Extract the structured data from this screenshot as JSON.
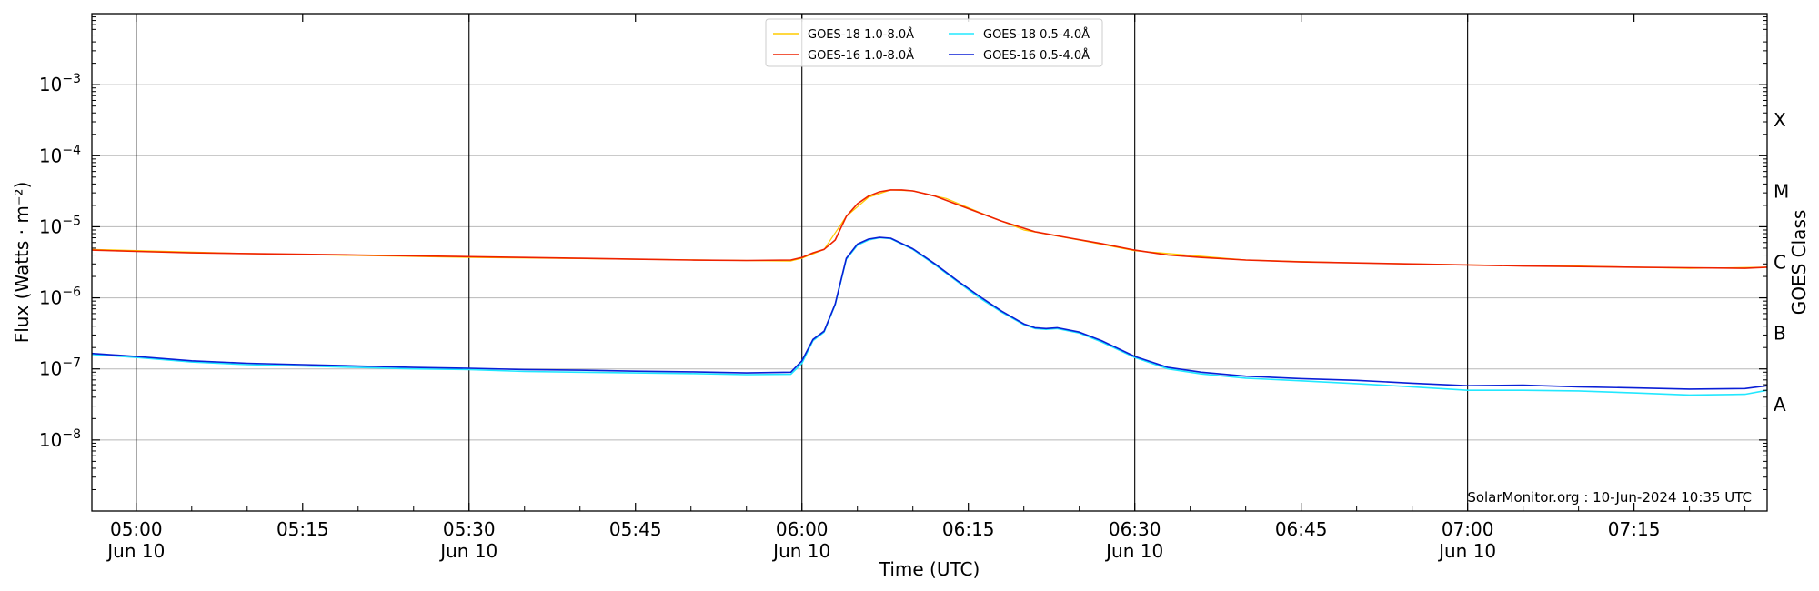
{
  "chart_data": {
    "type": "line",
    "title": "",
    "xlabel": "Time (UTC)",
    "ylabel": "Flux (Watts · m⁻²)",
    "y2label": "GOES Class",
    "yscale": "log",
    "xlim": [
      "04:56",
      "07:27"
    ],
    "ylim": [
      1e-09,
      0.01
    ],
    "grid": "horizontal",
    "legend_position": "top-center",
    "credit": "SolarMonitor.org : 10-Jun-2024 10:35 UTC",
    "y_ticks": [
      {
        "value": 1e-08,
        "base": "10",
        "exp": "−8"
      },
      {
        "value": 1e-07,
        "base": "10",
        "exp": "−7"
      },
      {
        "value": 1e-06,
        "base": "10",
        "exp": "−6"
      },
      {
        "value": 1e-05,
        "base": "10",
        "exp": "−5"
      },
      {
        "value": 0.0001,
        "base": "10",
        "exp": "−4"
      },
      {
        "value": 0.001,
        "base": "10",
        "exp": "−3"
      }
    ],
    "x_ticks": [
      {
        "time": "05:00",
        "label": "05:00",
        "sub": "Jun 10"
      },
      {
        "time": "05:15",
        "label": "05:15",
        "sub": ""
      },
      {
        "time": "05:30",
        "label": "05:30",
        "sub": "Jun 10"
      },
      {
        "time": "05:45",
        "label": "05:45",
        "sub": ""
      },
      {
        "time": "06:00",
        "label": "06:00",
        "sub": "Jun 10"
      },
      {
        "time": "06:15",
        "label": "06:15",
        "sub": ""
      },
      {
        "time": "06:30",
        "label": "06:30",
        "sub": "Jun 10"
      },
      {
        "time": "06:45",
        "label": "06:45",
        "sub": ""
      },
      {
        "time": "07:00",
        "label": "07:00",
        "sub": "Jun 10"
      },
      {
        "time": "07:15",
        "label": "07:15",
        "sub": ""
      }
    ],
    "vertical_lines": [
      "05:00",
      "05:30",
      "06:00",
      "06:30",
      "07:00"
    ],
    "goes_classes": [
      {
        "label": "A",
        "low": 1e-08
      },
      {
        "label": "B",
        "low": 1e-07
      },
      {
        "label": "C",
        "low": 1e-06
      },
      {
        "label": "M",
        "low": 1e-05
      },
      {
        "label": "X",
        "low": 0.0001
      }
    ],
    "series": [
      {
        "name": "GOES-18 1.0-8.0Å",
        "color": "#ffcc00",
        "width": 1.2,
        "x": [
          "04:56",
          "05:10",
          "05:30",
          "05:45",
          "05:59",
          "06:00",
          "06:02",
          "06:04",
          "06:06",
          "06:08",
          "06:10",
          "06:13",
          "06:16",
          "06:20",
          "06:25",
          "06:30",
          "06:40",
          "06:50",
          "07:00",
          "07:10",
          "07:20",
          "07:27"
        ],
        "y": [
          4.8e-06,
          4.2e-06,
          3.7e-06,
          3.5e-06,
          3.3e-06,
          3.6e-06,
          4.8e-06,
          1.4e-05,
          2.6e-05,
          3.3e-05,
          3.2e-05,
          2.5e-05,
          1.6e-05,
          9e-06,
          6.5e-06,
          4.6e-06,
          3.4e-06,
          3.1e-06,
          2.9e-06,
          2.8e-06,
          2.6e-06,
          2.7e-06
        ]
      },
      {
        "name": "GOES-16 1.0-8.0Å",
        "color": "#ee2200",
        "width": 1.6,
        "x": [
          "04:56",
          "05:00",
          "05:05",
          "05:10",
          "05:15",
          "05:20",
          "05:25",
          "05:30",
          "05:35",
          "05:40",
          "05:45",
          "05:50",
          "05:55",
          "05:59",
          "06:00",
          "06:01",
          "06:02",
          "06:03",
          "06:04",
          "06:05",
          "06:06",
          "06:07",
          "06:08",
          "06:09",
          "06:10",
          "06:12",
          "06:15",
          "06:18",
          "06:21",
          "06:24",
          "06:27",
          "06:30",
          "06:33",
          "06:36",
          "06:40",
          "06:45",
          "06:50",
          "06:55",
          "07:00",
          "07:05",
          "07:10",
          "07:15",
          "07:20",
          "07:25",
          "07:27"
        ],
        "y": [
          4.7e-06,
          4.5e-06,
          4.3e-06,
          4.2e-06,
          4.1e-06,
          4e-06,
          3.9e-06,
          3.8e-06,
          3.7e-06,
          3.6e-06,
          3.5e-06,
          3.4e-06,
          3.35e-06,
          3.4e-06,
          3.7e-06,
          4.3e-06,
          4.8e-06,
          6.5e-06,
          1.4e-05,
          2.1e-05,
          2.7e-05,
          3.1e-05,
          3.3e-05,
          3.3e-05,
          3.2e-05,
          2.7e-05,
          1.8e-05,
          1.2e-05,
          8.5e-06,
          7e-06,
          5.8e-06,
          4.7e-06,
          4e-06,
          3.7e-06,
          3.4e-06,
          3.2e-06,
          3.1e-06,
          3e-06,
          2.9e-06,
          2.8e-06,
          2.75e-06,
          2.7e-06,
          2.65e-06,
          2.6e-06,
          2.7e-06
        ]
      },
      {
        "name": "GOES-18 0.5-4.0Å",
        "color": "#22e8ff",
        "width": 1.6,
        "x": [
          "04:56",
          "05:00",
          "05:05",
          "05:10",
          "05:15",
          "05:20",
          "05:25",
          "05:30",
          "05:35",
          "05:40",
          "05:45",
          "05:50",
          "05:55",
          "05:59",
          "06:00",
          "06:01",
          "06:02",
          "06:03",
          "06:04",
          "06:05",
          "06:06",
          "06:07",
          "06:08",
          "06:10",
          "06:12",
          "06:14",
          "06:16",
          "06:18",
          "06:20",
          "06:21",
          "06:22",
          "06:23",
          "06:25",
          "06:27",
          "06:30",
          "06:33",
          "06:36",
          "06:40",
          "06:45",
          "06:50",
          "06:55",
          "07:00",
          "07:05",
          "07:10",
          "07:15",
          "07:20",
          "07:25",
          "07:27"
        ],
        "y": [
          1.6e-07,
          1.45e-07,
          1.25e-07,
          1.15e-07,
          1.1e-07,
          1.05e-07,
          1e-07,
          9.8e-08,
          9.2e-08,
          9e-08,
          8.8e-08,
          8.6e-08,
          8.3e-08,
          8.4e-08,
          1.2e-07,
          2.5e-07,
          3.3e-07,
          8e-07,
          3.5e-06,
          5.5e-06,
          6.5e-06,
          7e-06,
          6.8e-06,
          4.8e-06,
          2.9e-06,
          1.7e-06,
          1e-06,
          6.3e-07,
          4.2e-07,
          3.7e-07,
          3.6e-07,
          3.7e-07,
          3.2e-07,
          2.4e-07,
          1.45e-07,
          1e-07,
          8.5e-08,
          7.4e-08,
          6.8e-08,
          6.2e-08,
          5.6e-08,
          5e-08,
          5e-08,
          4.9e-08,
          4.6e-08,
          4.3e-08,
          4.4e-08,
          5e-08
        ]
      },
      {
        "name": "GOES-16 0.5-4.0Å",
        "color": "#0a1fd6",
        "width": 1.6,
        "x": [
          "04:56",
          "05:00",
          "05:05",
          "05:10",
          "05:15",
          "05:20",
          "05:25",
          "05:30",
          "05:35",
          "05:40",
          "05:45",
          "05:50",
          "05:55",
          "05:59",
          "06:00",
          "06:01",
          "06:02",
          "06:03",
          "06:04",
          "06:05",
          "06:06",
          "06:07",
          "06:08",
          "06:10",
          "06:12",
          "06:14",
          "06:16",
          "06:18",
          "06:20",
          "06:21",
          "06:22",
          "06:23",
          "06:25",
          "06:27",
          "06:30",
          "06:33",
          "06:36",
          "06:40",
          "06:45",
          "06:50",
          "06:55",
          "07:00",
          "07:05",
          "07:10",
          "07:15",
          "07:20",
          "07:25",
          "07:27"
        ],
        "y": [
          1.65e-07,
          1.5e-07,
          1.3e-07,
          1.2e-07,
          1.15e-07,
          1.1e-07,
          1.05e-07,
          1.02e-07,
          9.8e-08,
          9.6e-08,
          9.3e-08,
          9.1e-08,
          8.8e-08,
          9e-08,
          1.3e-07,
          2.6e-07,
          3.4e-07,
          8.2e-07,
          3.6e-06,
          5.7e-06,
          6.7e-06,
          7.1e-06,
          6.9e-06,
          4.9e-06,
          3e-06,
          1.75e-06,
          1.05e-06,
          6.5e-07,
          4.3e-07,
          3.8e-07,
          3.7e-07,
          3.8e-07,
          3.3e-07,
          2.5e-07,
          1.5e-07,
          1.05e-07,
          9e-08,
          7.9e-08,
          7.3e-08,
          6.9e-08,
          6.3e-08,
          5.8e-08,
          5.9e-08,
          5.6e-08,
          5.4e-08,
          5.2e-08,
          5.3e-08,
          5.8e-08
        ]
      }
    ]
  }
}
